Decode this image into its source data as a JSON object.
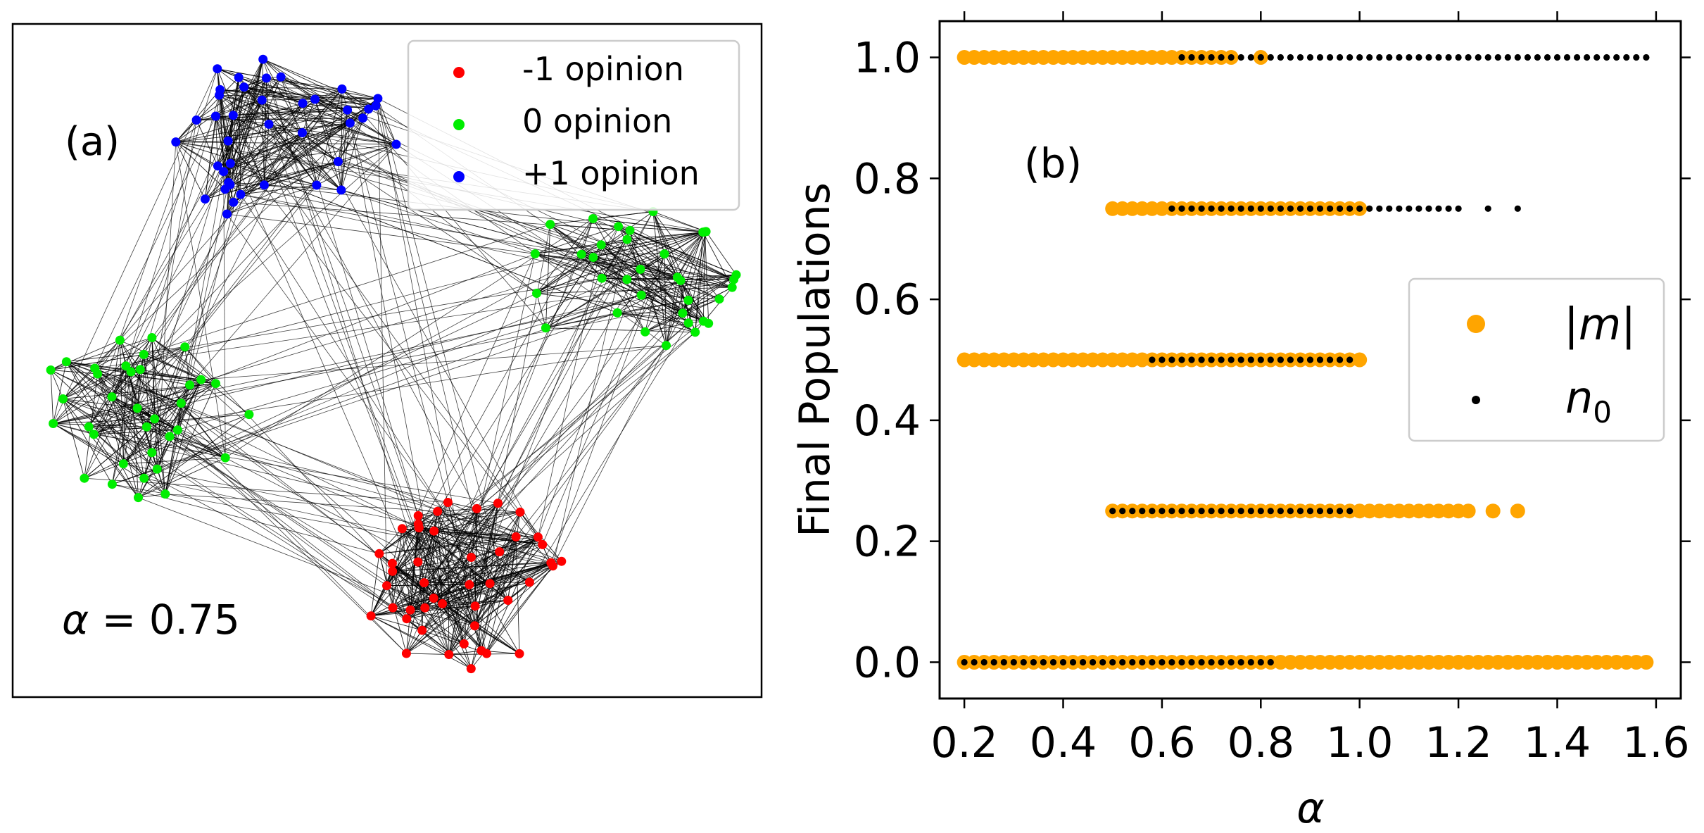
{
  "panel_a": {
    "label": "(a)",
    "alpha_prefix": "α",
    "alpha_text": " = 0.75",
    "legend": [
      {
        "label": "-1 opinion",
        "color": "#ff0000"
      },
      {
        "label": "0 opinion",
        "color": "#00ee00"
      },
      {
        "label": "+1 opinion",
        "color": "#0000ff"
      }
    ],
    "network": {
      "communities": [
        {
          "opinion": "+1",
          "color": "#0000ff",
          "nodes": 40
        },
        {
          "opinion": "0",
          "color": "#00ee00",
          "nodes": 35
        },
        {
          "opinion": "0",
          "color": "#00ee00",
          "nodes": 35
        },
        {
          "opinion": "-1",
          "color": "#ff0000",
          "nodes": 45
        }
      ],
      "edge_color": "#000000"
    }
  },
  "chart_data": {
    "type": "scatter",
    "panel_label": "(b)",
    "title": "",
    "xlabel": "α",
    "ylabel": "Final Populations",
    "xlim": [
      0.15,
      1.65
    ],
    "ylim": [
      -0.06,
      1.06
    ],
    "xticks": [
      0.2,
      0.4,
      0.6,
      0.8,
      1.0,
      1.2,
      1.4,
      1.6
    ],
    "xtick_labels": [
      "0.2",
      "0.4",
      "0.6",
      "0.8",
      "1.0",
      "1.2",
      "1.4",
      "1.6"
    ],
    "yticks": [
      0.0,
      0.2,
      0.4,
      0.6,
      0.8,
      1.0
    ],
    "ytick_labels": [
      "0.0",
      "0.2",
      "0.4",
      "0.6",
      "0.8",
      "1.0"
    ],
    "grid": false,
    "legend_position": "center-right",
    "series": [
      {
        "name": "|m|",
        "label_main": "|",
        "label_var": "m",
        "label_end": "|",
        "color": "#ffa500",
        "marker": "large-dot",
        "segments": [
          {
            "y": 1.0,
            "x_start": 0.2,
            "x_end": 0.74,
            "step": 0.02
          },
          {
            "y": 1.0,
            "x_start": 0.8,
            "x_end": 0.8,
            "step": 0.02
          },
          {
            "y": 0.75,
            "x_start": 0.5,
            "x_end": 1.0,
            "step": 0.02
          },
          {
            "y": 0.5,
            "x_start": 0.2,
            "x_end": 1.0,
            "step": 0.02
          },
          {
            "y": 0.25,
            "x_start": 0.5,
            "x_end": 1.22,
            "step": 0.02
          },
          {
            "y": 0.25,
            "x_start": 1.27,
            "x_end": 1.32,
            "step": 0.05
          },
          {
            "y": 0.0,
            "x_start": 0.2,
            "x_end": 1.58,
            "step": 0.02
          }
        ]
      },
      {
        "name": "n0",
        "label_main": "n",
        "label_sub": "0",
        "color": "#000000",
        "marker": "small-dot",
        "segments": [
          {
            "y": 1.0,
            "x_start": 0.64,
            "x_end": 1.58,
            "step": 0.02
          },
          {
            "y": 0.75,
            "x_start": 0.62,
            "x_end": 1.2,
            "step": 0.02
          },
          {
            "y": 0.75,
            "x_start": 1.26,
            "x_end": 1.32,
            "step": 0.06
          },
          {
            "y": 0.5,
            "x_start": 0.58,
            "x_end": 0.98,
            "step": 0.02
          },
          {
            "y": 0.25,
            "x_start": 0.5,
            "x_end": 0.98,
            "step": 0.02
          },
          {
            "y": 0.0,
            "x_start": 0.2,
            "x_end": 0.82,
            "step": 0.02
          }
        ]
      }
    ]
  }
}
